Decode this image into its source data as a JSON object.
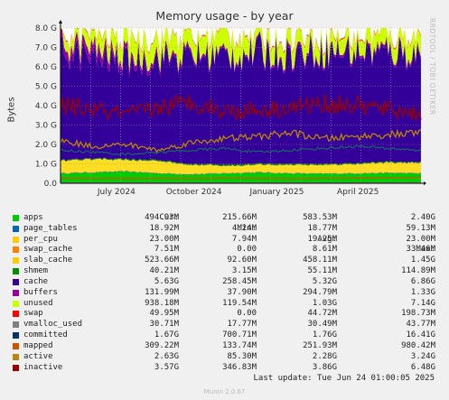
{
  "chart_data": {
    "type": "area",
    "title": "Memory usage - by year",
    "ylabel": "Bytes",
    "ylim": [
      0,
      8000000000
    ],
    "yticks": [
      "0.0",
      "1.0 G",
      "2.0 G",
      "3.0 G",
      "4.0 G",
      "5.0 G",
      "6.0 G",
      "7.0 G",
      "8.0 G"
    ],
    "xticks": [
      "July 2024",
      "October 2024",
      "January 2025",
      "April 2025"
    ],
    "grid": true,
    "stacked": true,
    "series": [
      {
        "name": "apps",
        "color": "#00cc00",
        "values": [
          0.5,
          0.55,
          0.6,
          0.5,
          0.45,
          0.5,
          0.55,
          0.5,
          0.48,
          0.5,
          0.52,
          0.5
        ]
      },
      {
        "name": "page_tables",
        "color": "#0066b3",
        "values": [
          0.02,
          0.02,
          0.02,
          0.02,
          0.02,
          0.02,
          0.02,
          0.02,
          0.02,
          0.02,
          0.02,
          0.02
        ]
      },
      {
        "name": "per_cpu",
        "color": "#ff8000",
        "values": [
          0.02,
          0.02,
          0.02,
          0.02,
          0.02,
          0.02,
          0.02,
          0.02,
          0.02,
          0.02,
          0.02,
          0.02
        ]
      },
      {
        "name": "swap_cache",
        "color": "#ffcc00",
        "values": [
          0.01,
          0.01,
          0.01,
          0.01,
          0.01,
          0.01,
          0.01,
          0.01,
          0.01,
          0.01,
          0.01,
          0.01
        ]
      },
      {
        "name": "slab_cache",
        "color": "#ffdd22",
        "values": [
          0.6,
          0.65,
          0.55,
          0.6,
          0.45,
          0.35,
          0.35,
          0.4,
          0.4,
          0.45,
          0.5,
          0.5
        ]
      },
      {
        "name": "shmem",
        "color": "#008f00",
        "values": [
          0.04,
          0.04,
          0.05,
          0.05,
          0.05,
          0.06,
          0.06,
          0.06,
          0.05,
          0.05,
          0.05,
          0.04
        ]
      },
      {
        "name": "cache",
        "color": "#330099",
        "values": [
          5.6,
          5.2,
          5.0,
          5.2,
          5.5,
          5.6,
          5.7,
          5.6,
          5.8,
          5.7,
          5.6,
          5.6
        ]
      },
      {
        "name": "buffers",
        "color": "#990099",
        "values": [
          0.4,
          0.45,
          0.3,
          0.2,
          0.15,
          0.1,
          0.1,
          0.15,
          0.12,
          0.13,
          0.13,
          0.13
        ]
      },
      {
        "name": "unused",
        "color": "#ccff00",
        "values": [
          0.5,
          0.7,
          1.1,
          1.0,
          0.95,
          1.1,
          0.8,
          0.85,
          0.75,
          0.78,
          0.8,
          0.93
        ]
      },
      {
        "name": "swap",
        "color": "#ff0000",
        "values": [
          0.05,
          0.05,
          0.04,
          0.04,
          0.04,
          0.05,
          0.05,
          0.05,
          0.05,
          0.05,
          0.05,
          0.05
        ]
      }
    ],
    "lines": [
      {
        "name": "vmalloc_used",
        "color": "#808080",
        "values": [
          0.03,
          0.03,
          0.03,
          0.03,
          0.03,
          0.03,
          0.03,
          0.03,
          0.03,
          0.03,
          0.03,
          0.03
        ]
      },
      {
        "name": "committed",
        "color": "#1a5f6b",
        "values": [
          1.7,
          1.6,
          1.5,
          1.6,
          1.7,
          1.8,
          1.6,
          1.7,
          1.8,
          1.9,
          1.8,
          1.7
        ]
      },
      {
        "name": "mapped",
        "color": "#cc5500",
        "values": [
          0.25,
          0.25,
          0.24,
          0.25,
          0.24,
          0.26,
          0.25,
          0.24,
          0.25,
          0.26,
          0.28,
          0.31
        ]
      },
      {
        "name": "active",
        "color": "#b8860b",
        "values": [
          2.2,
          1.9,
          2.0,
          1.7,
          2.1,
          2.3,
          2.4,
          2.6,
          2.3,
          2.4,
          2.5,
          2.6
        ]
      },
      {
        "name": "inactive",
        "color": "#990000",
        "values": [
          4.0,
          3.8,
          3.5,
          3.9,
          4.2,
          3.7,
          3.8,
          3.9,
          4.1,
          4.0,
          3.8,
          3.6
        ]
      }
    ]
  },
  "legend_headers": {
    "cur": "Cur:",
    "min": "Min:",
    "avg": "Avg:",
    "max": "Max:"
  },
  "legend": [
    {
      "name": "apps",
      "color": "#00cc00",
      "cur": "494.93M",
      "min": "215.66M",
      "avg": "583.53M",
      "max": "2.40G"
    },
    {
      "name": "page_tables",
      "color": "#0066b3",
      "cur": "18.92M",
      "min": "4.24M",
      "avg": "18.77M",
      "max": "59.13M"
    },
    {
      "name": "per_cpu",
      "color": "#ffcc00",
      "cur": "23.00M",
      "min": "7.94M",
      "avg": "19.25M",
      "max": "23.00M"
    },
    {
      "name": "swap_cache",
      "color": "#ff8000",
      "cur": "7.51M",
      "min": "0.00",
      "avg": "8.61M",
      "max": "33.46M"
    },
    {
      "name": "slab_cache",
      "color": "#ffcc00",
      "cur": "523.66M",
      "min": "92.60M",
      "avg": "458.11M",
      "max": "1.45G"
    },
    {
      "name": "shmem",
      "color": "#008f00",
      "cur": "40.21M",
      "min": "3.15M",
      "avg": "55.11M",
      "max": "114.89M"
    },
    {
      "name": "cache",
      "color": "#330099",
      "cur": "5.63G",
      "min": "258.45M",
      "avg": "5.32G",
      "max": "6.86G"
    },
    {
      "name": "buffers",
      "color": "#990099",
      "cur": "131.99M",
      "min": "37.90M",
      "avg": "294.79M",
      "max": "1.33G"
    },
    {
      "name": "unused",
      "color": "#ccff00",
      "cur": "938.18M",
      "min": "119.54M",
      "avg": "1.03G",
      "max": "7.14G"
    },
    {
      "name": "swap",
      "color": "#ff0000",
      "cur": "49.95M",
      "min": "0.00",
      "avg": "44.72M",
      "max": "198.73M"
    },
    {
      "name": "vmalloc_used",
      "color": "#808080",
      "cur": "30.71M",
      "min": "17.77M",
      "avg": "30.49M",
      "max": "43.77M"
    },
    {
      "name": "committed",
      "color": "#003366",
      "cur": "1.67G",
      "min": "700.71M",
      "avg": "1.76G",
      "max": "16.41G"
    },
    {
      "name": "mapped",
      "color": "#cc5500",
      "cur": "309.22M",
      "min": "133.74M",
      "avg": "251.93M",
      "max": "980.42M"
    },
    {
      "name": "active",
      "color": "#b8860b",
      "cur": "2.63G",
      "min": "85.30M",
      "avg": "2.28G",
      "max": "3.24G"
    },
    {
      "name": "inactive",
      "color": "#990000",
      "cur": "3.57G",
      "min": "346.83M",
      "avg": "3.86G",
      "max": "6.48G"
    }
  ],
  "last_update": "Last update: Tue Jun 24 01:00:05 2025",
  "rrd_credit": "RRDTOOL / TOBI OETIKER",
  "version": "Munin 2.0.67"
}
